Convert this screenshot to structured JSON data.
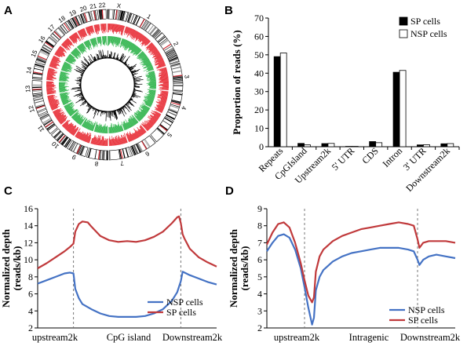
{
  "panels": {
    "A": "A",
    "B": "B",
    "C": "C",
    "D": "D"
  },
  "chart_data": [
    {
      "panel": "A",
      "type": "other",
      "description_labels": [
        "X",
        "1",
        "2",
        "3",
        "4",
        "5",
        "6",
        "7",
        "8",
        "9",
        "10",
        "11",
        "12",
        "13",
        "14",
        "15",
        "16",
        "17",
        "18",
        "19",
        "20",
        "21",
        "22"
      ],
      "tracks": {
        "outer_ring": "chromosome ideogram",
        "red_track": "#e8313a",
        "green_track": "#2db34a",
        "inner_track": "#000000"
      }
    },
    {
      "panel": "B",
      "type": "bar",
      "categories": [
        "Repeats",
        "CpGIsland",
        "Upstream2k",
        "5' UTR",
        "CDS",
        "Intron",
        "3' UTR",
        "Downstream2k"
      ],
      "series": [
        {
          "name": "SP cells",
          "values": [
            49,
            1.8,
            1.7,
            0.2,
            2.8,
            40.5,
            1.0,
            1.6
          ],
          "color": "#000000"
        },
        {
          "name": "NSP cells",
          "values": [
            51,
            1.0,
            1.8,
            0.2,
            2.2,
            41.5,
            1.1,
            1.7
          ],
          "color": "#ffffff"
        }
      ],
      "ylabel": "Proportion of reads (%)",
      "ylim": [
        0,
        70
      ],
      "yticks": [
        0,
        10,
        20,
        30,
        40,
        50,
        60,
        70
      ],
      "legend_position": "top-right"
    },
    {
      "panel": "C",
      "type": "line",
      "ylabel_line1": "Normalized depth",
      "ylabel_line2": "(reads/kb)",
      "ylim": [
        2,
        16
      ],
      "yticks": [
        2,
        4,
        6,
        8,
        10,
        12,
        14,
        16
      ],
      "xlim": [
        0,
        100
      ],
      "boundaries": [
        20,
        80
      ],
      "xlabels": [
        "upstream2k",
        "CpG island",
        "Downstream2k"
      ],
      "legend_position": "bottom-right",
      "series": [
        {
          "name": "NSP cells",
          "color": "#4472c4",
          "x": [
            0,
            5,
            10,
            15,
            18,
            20,
            21,
            23,
            25,
            30,
            35,
            40,
            45,
            50,
            55,
            60,
            65,
            70,
            75,
            78,
            80,
            81,
            82,
            85,
            90,
            95,
            100
          ],
          "y": [
            7.2,
            7.6,
            8.0,
            8.4,
            8.5,
            8.4,
            6.6,
            5.5,
            4.8,
            4.2,
            3.7,
            3.4,
            3.3,
            3.3,
            3.3,
            3.4,
            3.7,
            4.2,
            5.2,
            6.2,
            7.5,
            8.6,
            8.5,
            8.2,
            7.8,
            7.4,
            7.1
          ]
        },
        {
          "name": "SP cells",
          "color": "#c0393b",
          "x": [
            0,
            5,
            10,
            15,
            18,
            20,
            21,
            23,
            25,
            28,
            30,
            35,
            40,
            45,
            50,
            55,
            60,
            65,
            70,
            75,
            78,
            79,
            80,
            81,
            82,
            85,
            90,
            95,
            100
          ],
          "y": [
            9.0,
            9.6,
            10.3,
            11.0,
            11.5,
            11.9,
            13.3,
            14.2,
            14.5,
            14.4,
            13.9,
            12.8,
            12.3,
            12.1,
            12.2,
            12.1,
            12.3,
            12.7,
            13.3,
            14.3,
            15.0,
            15.1,
            14.3,
            13.0,
            12.5,
            11.3,
            10.3,
            9.7,
            9.2
          ]
        }
      ]
    },
    {
      "panel": "D",
      "type": "line",
      "ylabel_line1": "Normalized depth",
      "ylabel_line2": "(reads/kb)",
      "ylim": [
        2,
        9
      ],
      "yticks": [
        2,
        3,
        4,
        5,
        6,
        7,
        8,
        9
      ],
      "xlim": [
        0,
        100
      ],
      "boundaries": [
        20,
        80
      ],
      "xlabels": [
        "upstream2k",
        "Intragenic",
        "Downstream2k"
      ],
      "legend_position": "bottom-right",
      "series": [
        {
          "name": "NSP cells",
          "color": "#4472c4",
          "x": [
            0,
            3,
            6,
            9,
            12,
            15,
            18,
            20,
            22,
            24,
            25,
            26,
            28,
            30,
            35,
            40,
            45,
            50,
            55,
            60,
            65,
            70,
            75,
            78,
            80,
            81,
            83,
            86,
            90,
            95,
            100
          ],
          "y": [
            6.5,
            7.0,
            7.4,
            7.5,
            7.3,
            6.6,
            5.5,
            4.4,
            3.2,
            2.2,
            2.6,
            4.2,
            5.0,
            5.4,
            5.9,
            6.2,
            6.4,
            6.5,
            6.6,
            6.7,
            6.7,
            6.7,
            6.6,
            6.5,
            6.0,
            5.7,
            6.0,
            6.2,
            6.3,
            6.2,
            6.1
          ]
        },
        {
          "name": "SP cells",
          "color": "#c0393b",
          "x": [
            0,
            3,
            6,
            9,
            12,
            15,
            18,
            20,
            22,
            24,
            25,
            26,
            28,
            30,
            35,
            40,
            45,
            50,
            55,
            60,
            65,
            70,
            75,
            78,
            80,
            81,
            83,
            86,
            90,
            95,
            100
          ],
          "y": [
            6.9,
            7.6,
            8.1,
            8.2,
            7.9,
            7.0,
            5.8,
            4.8,
            3.9,
            3.5,
            3.8,
            5.3,
            6.2,
            6.6,
            7.1,
            7.4,
            7.6,
            7.8,
            7.9,
            8.0,
            8.1,
            8.2,
            8.1,
            8.0,
            7.2,
            6.7,
            7.0,
            7.1,
            7.1,
            7.1,
            7.0
          ]
        }
      ]
    }
  ]
}
